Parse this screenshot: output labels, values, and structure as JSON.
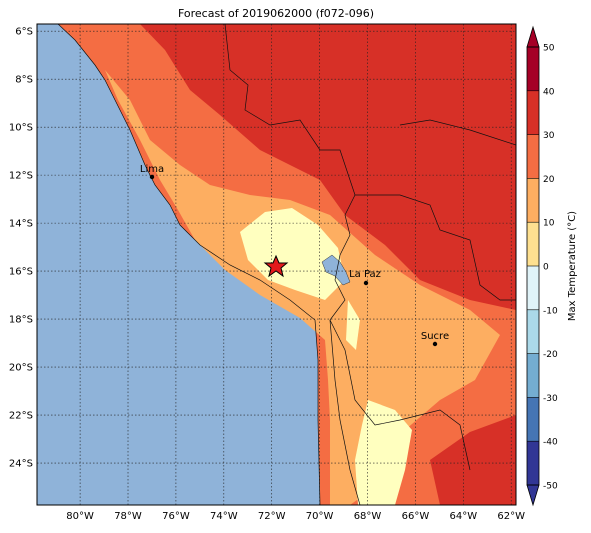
{
  "chart_data": {
    "type": "map",
    "title": "Forecast of 2019062000 (f072-096)",
    "xlim": [
      -81.8,
      -61.8
    ],
    "ylim": [
      -25.75,
      -5.7
    ],
    "xticks": [
      {
        "value": -80,
        "label": "80°W"
      },
      {
        "value": -78,
        "label": "78°W"
      },
      {
        "value": -76,
        "label": "76°W"
      },
      {
        "value": -74,
        "label": "74°W"
      },
      {
        "value": -72,
        "label": "72°W"
      },
      {
        "value": -70,
        "label": "70°W"
      },
      {
        "value": -68,
        "label": "68°W"
      },
      {
        "value": -66,
        "label": "66°W"
      },
      {
        "value": -64,
        "label": "64°W"
      },
      {
        "value": -62,
        "label": "62°W"
      }
    ],
    "yticks": [
      {
        "value": -6,
        "label": "6°S"
      },
      {
        "value": -8,
        "label": "8°S"
      },
      {
        "value": -10,
        "label": "10°S"
      },
      {
        "value": -12,
        "label": "12°S"
      },
      {
        "value": -14,
        "label": "14°S"
      },
      {
        "value": -16,
        "label": "16°S"
      },
      {
        "value": -18,
        "label": "18°S"
      },
      {
        "value": -20,
        "label": "20°S"
      },
      {
        "value": -22,
        "label": "22°S"
      },
      {
        "value": -24,
        "label": "24°S"
      }
    ],
    "grid": true,
    "colorbar": {
      "label": "Max Temperature (°C)",
      "lim": [
        -50,
        50
      ],
      "ticks": [
        -50,
        -40,
        -30,
        -20,
        -10,
        0,
        10,
        20,
        30,
        40,
        50
      ],
      "colors": [
        "#313695",
        "#4575b4",
        "#74add1",
        "#abd9e9",
        "#e0f3f8",
        "#fee090",
        "#fdae61",
        "#f46d43",
        "#d73027",
        "#a50026"
      ]
    },
    "places": [
      {
        "label": "Lima"
      },
      {
        "label": "La Paz"
      },
      {
        "label": "Sucre"
      }
    ]
  }
}
